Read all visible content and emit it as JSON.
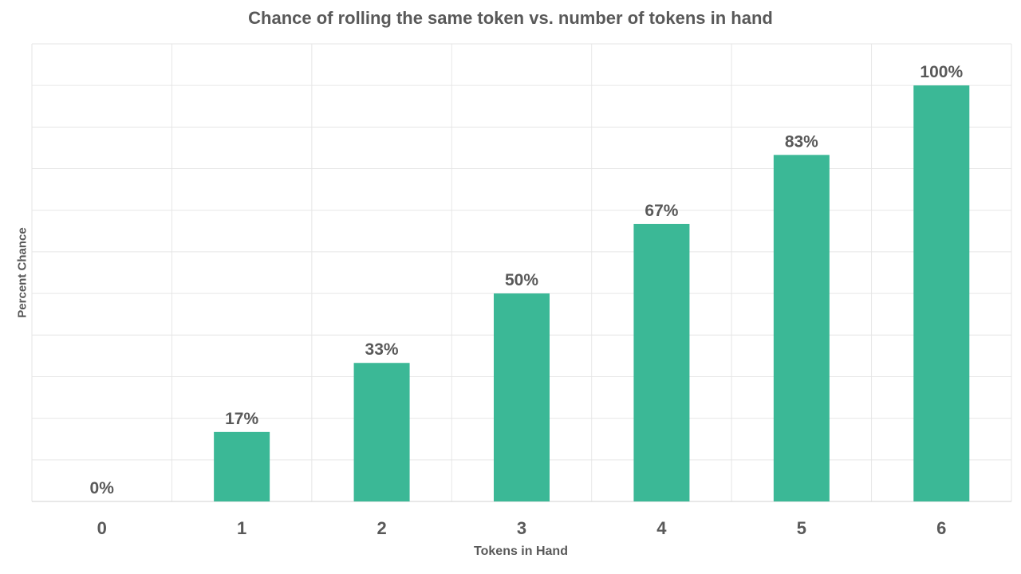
{
  "chart_data": {
    "type": "bar",
    "title": "Chance of rolling the same token vs. number of tokens in hand",
    "xlabel": "Tokens in Hand",
    "ylabel": "Percent Chance",
    "categories": [
      "0",
      "1",
      "2",
      "3",
      "4",
      "5",
      "6"
    ],
    "values": [
      0,
      16.7,
      33.3,
      50,
      66.7,
      83.3,
      100
    ],
    "data_labels": [
      "0%",
      "17%",
      "33%",
      "50%",
      "67%",
      "83%",
      "100%"
    ],
    "ylim": [
      0,
      110
    ],
    "grid": true,
    "legend": "none",
    "bar_color": "#3bb896",
    "grid_color": "#e6e6e6",
    "text_color": "#595959"
  }
}
